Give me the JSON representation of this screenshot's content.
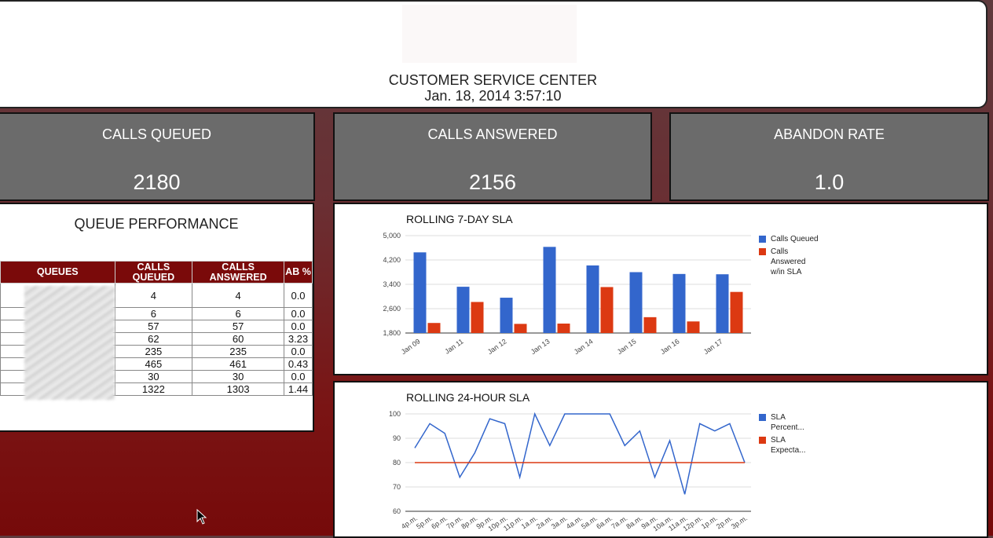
{
  "header": {
    "title": "CUSTOMER SERVICE CENTER",
    "datetime": "Jan. 18, 2014 3:57:10"
  },
  "stats": {
    "queued": {
      "label": "CALLS QUEUED",
      "value": "2180"
    },
    "answered": {
      "label": "CALLS ANSWERED",
      "value": "2156"
    },
    "abandon": {
      "label": "ABANDON RATE",
      "value": "1.0"
    }
  },
  "queue_performance": {
    "title": "QUEUE PERFORMANCE",
    "columns": [
      "QUEUES",
      "CALLS QUEUED",
      "CALLS ANSWERED",
      "AB %"
    ],
    "rows": [
      {
        "queued": "4",
        "answered": "4",
        "ab": "0.0"
      },
      {
        "queued": "6",
        "answered": "6",
        "ab": "0.0"
      },
      {
        "queued": "57",
        "answered": "57",
        "ab": "0.0"
      },
      {
        "queued": "62",
        "answered": "60",
        "ab": "3.23"
      },
      {
        "queued": "235",
        "answered": "235",
        "ab": "0.0"
      },
      {
        "queued": "465",
        "answered": "461",
        "ab": "0.43"
      },
      {
        "queued": "30",
        "answered": "30",
        "ab": "0.0"
      },
      {
        "queued": "1322",
        "answered": "1303",
        "ab": "1.44"
      }
    ]
  },
  "colors": {
    "blue": "#3366cc",
    "red": "#dc3912",
    "header_red": "#7a0a0a",
    "stat_gray": "#6b6b6b"
  },
  "chart_data": [
    {
      "type": "bar",
      "title": "ROLLING 7-DAY SLA",
      "categories": [
        "Jan 09",
        "Jan 11",
        "Jan 12",
        "Jan 13",
        "Jan 14",
        "Jan 15",
        "Jan 16",
        "Jan 17"
      ],
      "series": [
        {
          "name": "Calls Queued",
          "values": [
            4450,
            3320,
            2960,
            4630,
            4020,
            3800,
            3740,
            3730
          ]
        },
        {
          "name": "Calls Answered w/in SLA",
          "values": [
            2130,
            2820,
            2100,
            2110,
            3310,
            2320,
            2180,
            3150
          ]
        }
      ],
      "yticks": [
        "5,000",
        "4,200",
        "3,400",
        "2,600",
        "1,800"
      ],
      "ylim": [
        1800,
        5000
      ],
      "legend": "right",
      "grid": true
    },
    {
      "type": "line",
      "title": "ROLLING 24-HOUR SLA",
      "categories": [
        "4p.m.",
        "5p.m.",
        "6p.m.",
        "7p.m.",
        "8p.m.",
        "9p.m.",
        "10p.m.",
        "11p.m.",
        "1a.m.",
        "2a.m.",
        "3a.m.",
        "4a.m.",
        "5a.m.",
        "6a.m.",
        "7a.m.",
        "8a.m.",
        "9a.m.",
        "10a.m.",
        "11a.m.",
        "12p.m.",
        "1p.m.",
        "2p.m.",
        "3p.m."
      ],
      "series": [
        {
          "name": "SLA Percent...",
          "values": [
            86,
            96,
            92,
            74,
            84,
            98,
            96,
            74,
            100,
            87,
            100,
            100,
            100,
            100,
            87,
            93,
            74,
            89,
            67,
            96,
            93,
            96,
            80
          ]
        },
        {
          "name": "SLA Expecta...",
          "values": [
            80,
            80,
            80,
            80,
            80,
            80,
            80,
            80,
            80,
            80,
            80,
            80,
            80,
            80,
            80,
            80,
            80,
            80,
            80,
            80,
            80,
            80,
            80
          ]
        }
      ],
      "yticks": [
        "100",
        "90",
        "80",
        "70",
        "60"
      ],
      "ylim": [
        60,
        100
      ],
      "legend": "right",
      "grid": true
    }
  ]
}
